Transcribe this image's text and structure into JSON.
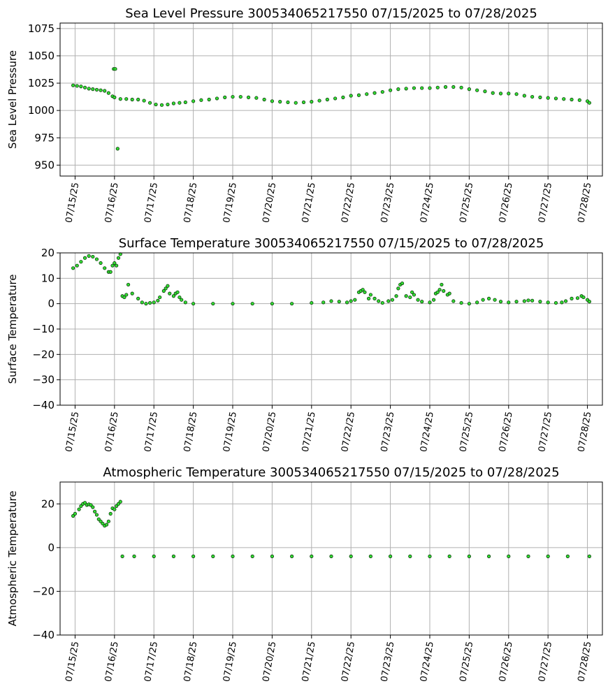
{
  "colors": {
    "marker_fill": "#33dd33",
    "marker_edge": "#0a3a0a",
    "grid": "#b0b0b0"
  },
  "chart_data": [
    {
      "type": "scatter",
      "title": "Sea Level Pressure 300534065217550  07/15/2025 to 07/28/2025",
      "xlabel": "",
      "ylabel": "Sea Level Pressure",
      "x_tick_labels": [
        "07/15/25",
        "07/16/25",
        "07/17/25",
        "07/18/25",
        "07/19/25",
        "07/20/25",
        "07/21/25",
        "07/22/25",
        "07/23/25",
        "07/24/25",
        "07/25/25",
        "07/26/25",
        "07/27/25",
        "07/28/25"
      ],
      "x_tick_values": [
        0,
        1,
        2,
        3,
        4,
        5,
        6,
        7,
        8,
        9,
        10,
        11,
        12,
        13
      ],
      "xlim": [
        -0.38,
        13.38
      ],
      "ylim": [
        940,
        1080
      ],
      "y_ticks": [
        950,
        975,
        1000,
        1025,
        1050,
        1075
      ],
      "grid": true,
      "series_points": [
        [
          -0.05,
          1023
        ],
        [
          0.05,
          1022.5
        ],
        [
          0.15,
          1022
        ],
        [
          0.25,
          1021
        ],
        [
          0.35,
          1020
        ],
        [
          0.45,
          1019.5
        ],
        [
          0.55,
          1019
        ],
        [
          0.65,
          1018.5
        ],
        [
          0.75,
          1018
        ],
        [
          0.85,
          1016
        ],
        [
          0.95,
          1013
        ],
        [
          1.0,
          1012
        ],
        [
          0.98,
          1038
        ],
        [
          1.02,
          1038
        ],
        [
          1.08,
          965
        ],
        [
          1.15,
          1010.5
        ],
        [
          1.3,
          1010.5
        ],
        [
          1.45,
          1010
        ],
        [
          1.6,
          1010
        ],
        [
          1.75,
          1009
        ],
        [
          1.9,
          1007
        ],
        [
          2.05,
          1005.5
        ],
        [
          2.2,
          1005
        ],
        [
          2.35,
          1005.5
        ],
        [
          2.5,
          1006.5
        ],
        [
          2.65,
          1007
        ],
        [
          2.8,
          1007.5
        ],
        [
          3.0,
          1008.5
        ],
        [
          3.2,
          1009.5
        ],
        [
          3.4,
          1010
        ],
        [
          3.6,
          1011
        ],
        [
          3.8,
          1012
        ],
        [
          4.0,
          1012.5
        ],
        [
          4.2,
          1012.5
        ],
        [
          4.4,
          1012
        ],
        [
          4.6,
          1011.5
        ],
        [
          4.8,
          1010
        ],
        [
          5.0,
          1008.5
        ],
        [
          5.2,
          1008
        ],
        [
          5.4,
          1007.5
        ],
        [
          5.6,
          1007
        ],
        [
          5.8,
          1007.5
        ],
        [
          6.0,
          1008
        ],
        [
          6.2,
          1009
        ],
        [
          6.4,
          1010
        ],
        [
          6.6,
          1011
        ],
        [
          6.8,
          1012
        ],
        [
          7.0,
          1013.5
        ],
        [
          7.2,
          1014
        ],
        [
          7.4,
          1015
        ],
        [
          7.6,
          1016
        ],
        [
          7.8,
          1017
        ],
        [
          8.0,
          1018.5
        ],
        [
          8.2,
          1019.5
        ],
        [
          8.4,
          1020
        ],
        [
          8.6,
          1020.5
        ],
        [
          8.8,
          1020.5
        ],
        [
          9.0,
          1020.5
        ],
        [
          9.2,
          1021
        ],
        [
          9.4,
          1021.5
        ],
        [
          9.6,
          1021.5
        ],
        [
          9.8,
          1021
        ],
        [
          10.0,
          1019.5
        ],
        [
          10.2,
          1018.5
        ],
        [
          10.4,
          1017.5
        ],
        [
          10.6,
          1016
        ],
        [
          10.8,
          1015.5
        ],
        [
          11.0,
          1015.5
        ],
        [
          11.2,
          1015
        ],
        [
          11.4,
          1013.5
        ],
        [
          11.6,
          1012.5
        ],
        [
          11.8,
          1012
        ],
        [
          12.0,
          1011.5
        ],
        [
          12.2,
          1011
        ],
        [
          12.4,
          1010.5
        ],
        [
          12.6,
          1010
        ],
        [
          12.8,
          1009.5
        ],
        [
          13.0,
          1008.5
        ],
        [
          13.05,
          1007
        ]
      ]
    },
    {
      "type": "scatter",
      "title": "Surface Temperature 300534065217550  07/15/2025 to 07/28/2025",
      "xlabel": "",
      "ylabel": "Surface Temperature",
      "x_tick_labels": [
        "07/15/25",
        "07/16/25",
        "07/17/25",
        "07/18/25",
        "07/19/25",
        "07/20/25",
        "07/21/25",
        "07/22/25",
        "07/23/25",
        "07/24/25",
        "07/25/25",
        "07/26/25",
        "07/27/25",
        "07/28/25"
      ],
      "x_tick_values": [
        0,
        1,
        2,
        3,
        4,
        5,
        6,
        7,
        8,
        9,
        10,
        11,
        12,
        13
      ],
      "xlim": [
        -0.38,
        13.38
      ],
      "ylim": [
        -40,
        20
      ],
      "y_ticks": [
        -40,
        -30,
        -20,
        -10,
        0,
        10,
        20
      ],
      "grid": true,
      "series_points": [
        [
          -0.05,
          14
        ],
        [
          0.05,
          15
        ],
        [
          0.15,
          16.5
        ],
        [
          0.25,
          18
        ],
        [
          0.35,
          18.8
        ],
        [
          0.45,
          18.5
        ],
        [
          0.55,
          17.5
        ],
        [
          0.65,
          16
        ],
        [
          0.75,
          14
        ],
        [
          0.85,
          12.5
        ],
        [
          0.9,
          12.5
        ],
        [
          0.95,
          15
        ],
        [
          1.0,
          16
        ],
        [
          1.05,
          15
        ],
        [
          1.1,
          18
        ],
        [
          1.15,
          19.5
        ],
        [
          1.2,
          3
        ],
        [
          1.25,
          2.5
        ],
        [
          1.3,
          3.5
        ],
        [
          1.35,
          7.5
        ],
        [
          1.45,
          4
        ],
        [
          1.6,
          2
        ],
        [
          1.7,
          0.5
        ],
        [
          1.8,
          0
        ],
        [
          1.9,
          0.3
        ],
        [
          2.0,
          0.5
        ],
        [
          2.1,
          1.2
        ],
        [
          2.15,
          2.5
        ],
        [
          2.25,
          5
        ],
        [
          2.3,
          6
        ],
        [
          2.35,
          7
        ],
        [
          2.4,
          4
        ],
        [
          2.5,
          3
        ],
        [
          2.55,
          4
        ],
        [
          2.6,
          4.5
        ],
        [
          2.65,
          2.5
        ],
        [
          2.7,
          1.5
        ],
        [
          2.8,
          0.5
        ],
        [
          3.0,
          0
        ],
        [
          3.5,
          0
        ],
        [
          4.0,
          0
        ],
        [
          4.5,
          0
        ],
        [
          5.0,
          0
        ],
        [
          5.5,
          0
        ],
        [
          6.0,
          0.3
        ],
        [
          6.3,
          0.5
        ],
        [
          6.5,
          1
        ],
        [
          6.7,
          0.8
        ],
        [
          6.9,
          0.5
        ],
        [
          7.0,
          1
        ],
        [
          7.1,
          1.5
        ],
        [
          7.2,
          4.5
        ],
        [
          7.25,
          5
        ],
        [
          7.3,
          5.5
        ],
        [
          7.35,
          4.5
        ],
        [
          7.45,
          2
        ],
        [
          7.5,
          3.5
        ],
        [
          7.6,
          2
        ],
        [
          7.7,
          1
        ],
        [
          7.8,
          0.3
        ],
        [
          7.95,
          1
        ],
        [
          8.05,
          1.5
        ],
        [
          8.15,
          3
        ],
        [
          8.2,
          6
        ],
        [
          8.25,
          7.5
        ],
        [
          8.3,
          8
        ],
        [
          8.4,
          3
        ],
        [
          8.5,
          2.5
        ],
        [
          8.55,
          4.5
        ],
        [
          8.6,
          3.5
        ],
        [
          8.7,
          1.5
        ],
        [
          8.8,
          0.8
        ],
        [
          9.0,
          0.5
        ],
        [
          9.1,
          1.5
        ],
        [
          9.15,
          4
        ],
        [
          9.2,
          4.5
        ],
        [
          9.25,
          5.5
        ],
        [
          9.3,
          7.5
        ],
        [
          9.35,
          5
        ],
        [
          9.45,
          3.5
        ],
        [
          9.5,
          4
        ],
        [
          9.6,
          1
        ],
        [
          9.8,
          0.3
        ],
        [
          10.0,
          0
        ],
        [
          10.2,
          0.5
        ],
        [
          10.35,
          1.5
        ],
        [
          10.5,
          2
        ],
        [
          10.65,
          1.5
        ],
        [
          10.8,
          0.8
        ],
        [
          11.0,
          0.5
        ],
        [
          11.2,
          0.8
        ],
        [
          11.4,
          1
        ],
        [
          11.5,
          1.3
        ],
        [
          11.6,
          1.2
        ],
        [
          11.8,
          0.8
        ],
        [
          12.0,
          0.5
        ],
        [
          12.2,
          0.3
        ],
        [
          12.35,
          0.5
        ],
        [
          12.45,
          1
        ],
        [
          12.6,
          2
        ],
        [
          12.75,
          2.2
        ],
        [
          12.85,
          3
        ],
        [
          12.9,
          2.5
        ],
        [
          13.0,
          1.5
        ],
        [
          13.05,
          0.8
        ]
      ]
    },
    {
      "type": "scatter",
      "title": "Atmospheric Temperature 300534065217550  07/15/2025 to 07/28/2025",
      "xlabel": "",
      "ylabel": "Atmospheric Temperature",
      "x_tick_labels": [
        "07/15/25",
        "07/16/25",
        "07/17/25",
        "07/18/25",
        "07/19/25",
        "07/20/25",
        "07/21/25",
        "07/22/25",
        "07/23/25",
        "07/24/25",
        "07/25/25",
        "07/26/25",
        "07/27/25",
        "07/28/25"
      ],
      "x_tick_values": [
        0,
        1,
        2,
        3,
        4,
        5,
        6,
        7,
        8,
        9,
        10,
        11,
        12,
        13
      ],
      "xlim": [
        -0.38,
        13.38
      ],
      "ylim": [
        -40,
        30
      ],
      "y_ticks": [
        -40,
        -20,
        0,
        20
      ],
      "grid": true,
      "series_points": [
        [
          -0.05,
          14.5
        ],
        [
          0.0,
          15.5
        ],
        [
          0.1,
          17.5
        ],
        [
          0.15,
          19
        ],
        [
          0.2,
          20
        ],
        [
          0.25,
          20.5
        ],
        [
          0.3,
          19.5
        ],
        [
          0.35,
          19.8
        ],
        [
          0.4,
          19.5
        ],
        [
          0.45,
          18.5
        ],
        [
          0.5,
          16.5
        ],
        [
          0.55,
          15
        ],
        [
          0.6,
          13
        ],
        [
          0.65,
          12
        ],
        [
          0.7,
          11
        ],
        [
          0.75,
          10
        ],
        [
          0.8,
          10.5
        ],
        [
          0.85,
          12
        ],
        [
          0.9,
          15.5
        ],
        [
          0.95,
          18
        ],
        [
          1.0,
          17.5
        ],
        [
          1.05,
          19
        ],
        [
          1.1,
          20
        ],
        [
          1.15,
          21
        ],
        [
          1.2,
          -4
        ],
        [
          1.5,
          -4
        ],
        [
          2.0,
          -4
        ],
        [
          2.5,
          -4
        ],
        [
          3.0,
          -4
        ],
        [
          3.5,
          -4
        ],
        [
          4.0,
          -4
        ],
        [
          4.5,
          -4
        ],
        [
          5.0,
          -4
        ],
        [
          5.5,
          -4
        ],
        [
          6.0,
          -4
        ],
        [
          6.5,
          -4
        ],
        [
          7.0,
          -4
        ],
        [
          7.5,
          -4
        ],
        [
          8.0,
          -4
        ],
        [
          8.5,
          -4
        ],
        [
          9.0,
          -4
        ],
        [
          9.5,
          -4
        ],
        [
          10.0,
          -4
        ],
        [
          10.5,
          -4
        ],
        [
          11.0,
          -4
        ],
        [
          11.5,
          -4
        ],
        [
          12.0,
          -4
        ],
        [
          12.5,
          -4
        ],
        [
          13.05,
          -4
        ]
      ]
    }
  ]
}
